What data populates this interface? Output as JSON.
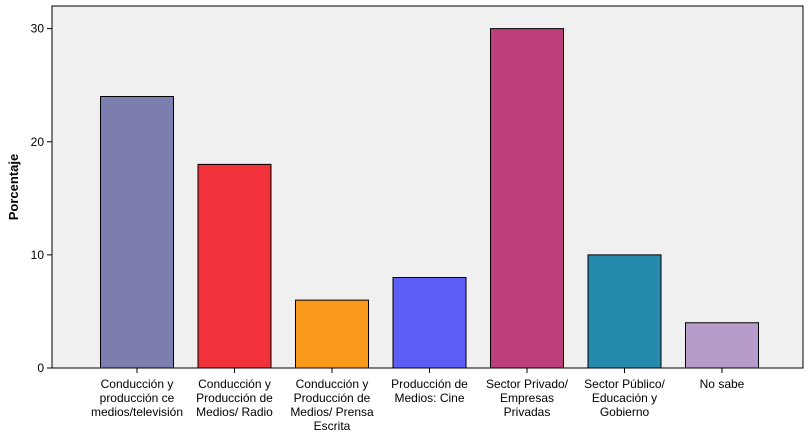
{
  "chart_data": {
    "type": "bar",
    "title": "",
    "xlabel": "",
    "ylabel": "Porcentaje",
    "ylim": [
      0,
      32
    ],
    "yticks": [
      0,
      10,
      20,
      30
    ],
    "grid": false,
    "legend": "none",
    "background_color": "#f0f0f0",
    "categories": [
      [
        "Conducción y",
        "producción ce",
        "medios/televisión"
      ],
      [
        "Conducción y",
        "Producción de",
        "Medios/ Radio"
      ],
      [
        "Conducción y",
        "Producción de",
        "Medios/ Prensa",
        "Escrita"
      ],
      [
        "Producción de",
        "Medios: Cine"
      ],
      [
        "Sector Privado/",
        "Empresas",
        "Privadas"
      ],
      [
        "Sector Público/",
        "Educación y",
        "Gobierno"
      ],
      [
        "No sabe"
      ]
    ],
    "values": [
      24,
      18,
      6,
      8,
      30,
      10,
      4
    ],
    "colors": [
      "#7c7fae",
      "#f2323b",
      "#f99a1c",
      "#5b5df5",
      "#bc3f7b",
      "#268aad",
      "#b79ccb"
    ]
  }
}
